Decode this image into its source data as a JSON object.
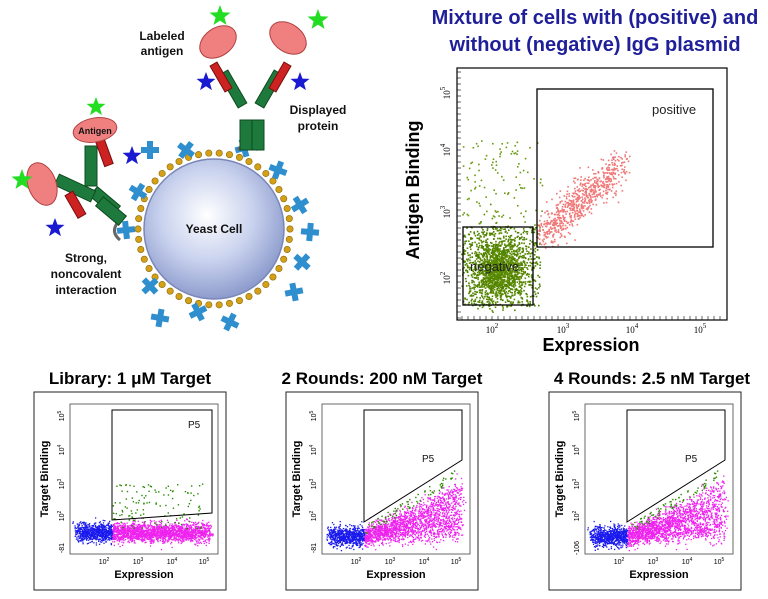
{
  "header": {
    "line1": "Mixture of cells with (positive) and",
    "line2": "without (negative) IgG plasmid"
  },
  "diagram": {
    "labeled_antigen_1": "Labeled",
    "labeled_antigen_2": "antigen",
    "displayed_protein_1": "Displayed",
    "displayed_protein_2": "protein",
    "yeast_cell": "Yeast Cell",
    "antigen_tag": "Antigen",
    "strong_1": "Strong,",
    "strong_2": "noncovalent",
    "strong_3": "interaction",
    "colors": {
      "cell": "#b8c4e8",
      "heavy": "#1e7a3c",
      "light": "#cc2222",
      "antigen": "#f08080",
      "star_green": "#22dd22",
      "star_blue": "#1a1ad0",
      "cross": "#2f8fce",
      "bead": "#d4a017"
    }
  },
  "main_plot": {
    "ylabel": "Antigen Binding",
    "xlabel": "Expression",
    "gate_positive": "positive",
    "gate_negative": "negative",
    "colors": {
      "negative": "#5a8a00",
      "positive": "#f07878"
    }
  },
  "panels": [
    {
      "title": "Library: 1 μM Target",
      "gate": "P5",
      "ylabel": "Target Binding",
      "xlabel": "Expression",
      "ymin_label": "-81"
    },
    {
      "title": "2 Rounds: 200 nM Target",
      "gate": "P5",
      "ylabel": "Target Binding",
      "xlabel": "Expression",
      "ymin_label": "-81"
    },
    {
      "title": "4 Rounds: 2.5 nM Target",
      "gate": "P5",
      "ylabel": "Target Binding",
      "xlabel": "Expression",
      "ymin_label": "-106"
    }
  ],
  "panel_colors": {
    "low": "#1a1aee",
    "high": "#ee22ee",
    "gated": "#2a8a00"
  }
}
